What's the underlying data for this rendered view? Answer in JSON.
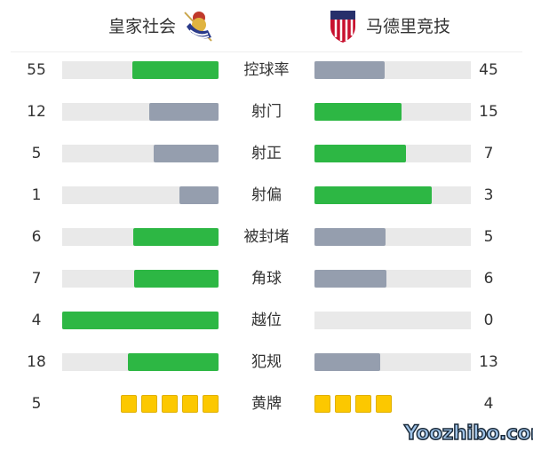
{
  "header": {
    "home_team": "皇家社会",
    "away_team": "马德里竞技",
    "home_crest_icon": "real-sociedad-crest",
    "away_crest_icon": "atletico-madrid-crest"
  },
  "colors": {
    "leader": "#2db744",
    "trailer": "#959eae",
    "track": "#e9e9e9",
    "card": "#fcc800"
  },
  "stats": [
    {
      "label": "控球率",
      "home": "55",
      "away": "45"
    },
    {
      "label": "射门",
      "home": "12",
      "away": "15"
    },
    {
      "label": "射正",
      "home": "5",
      "away": "7"
    },
    {
      "label": "射偏",
      "home": "1",
      "away": "3"
    },
    {
      "label": "被封堵",
      "home": "6",
      "away": "5"
    },
    {
      "label": "角球",
      "home": "7",
      "away": "6"
    },
    {
      "label": "越位",
      "home": "4",
      "away": "0"
    },
    {
      "label": "犯规",
      "home": "18",
      "away": "13"
    }
  ],
  "yellow_cards": {
    "label": "黄牌",
    "home": "5",
    "away": "4"
  },
  "watermark": "Yoozhibo.com"
}
